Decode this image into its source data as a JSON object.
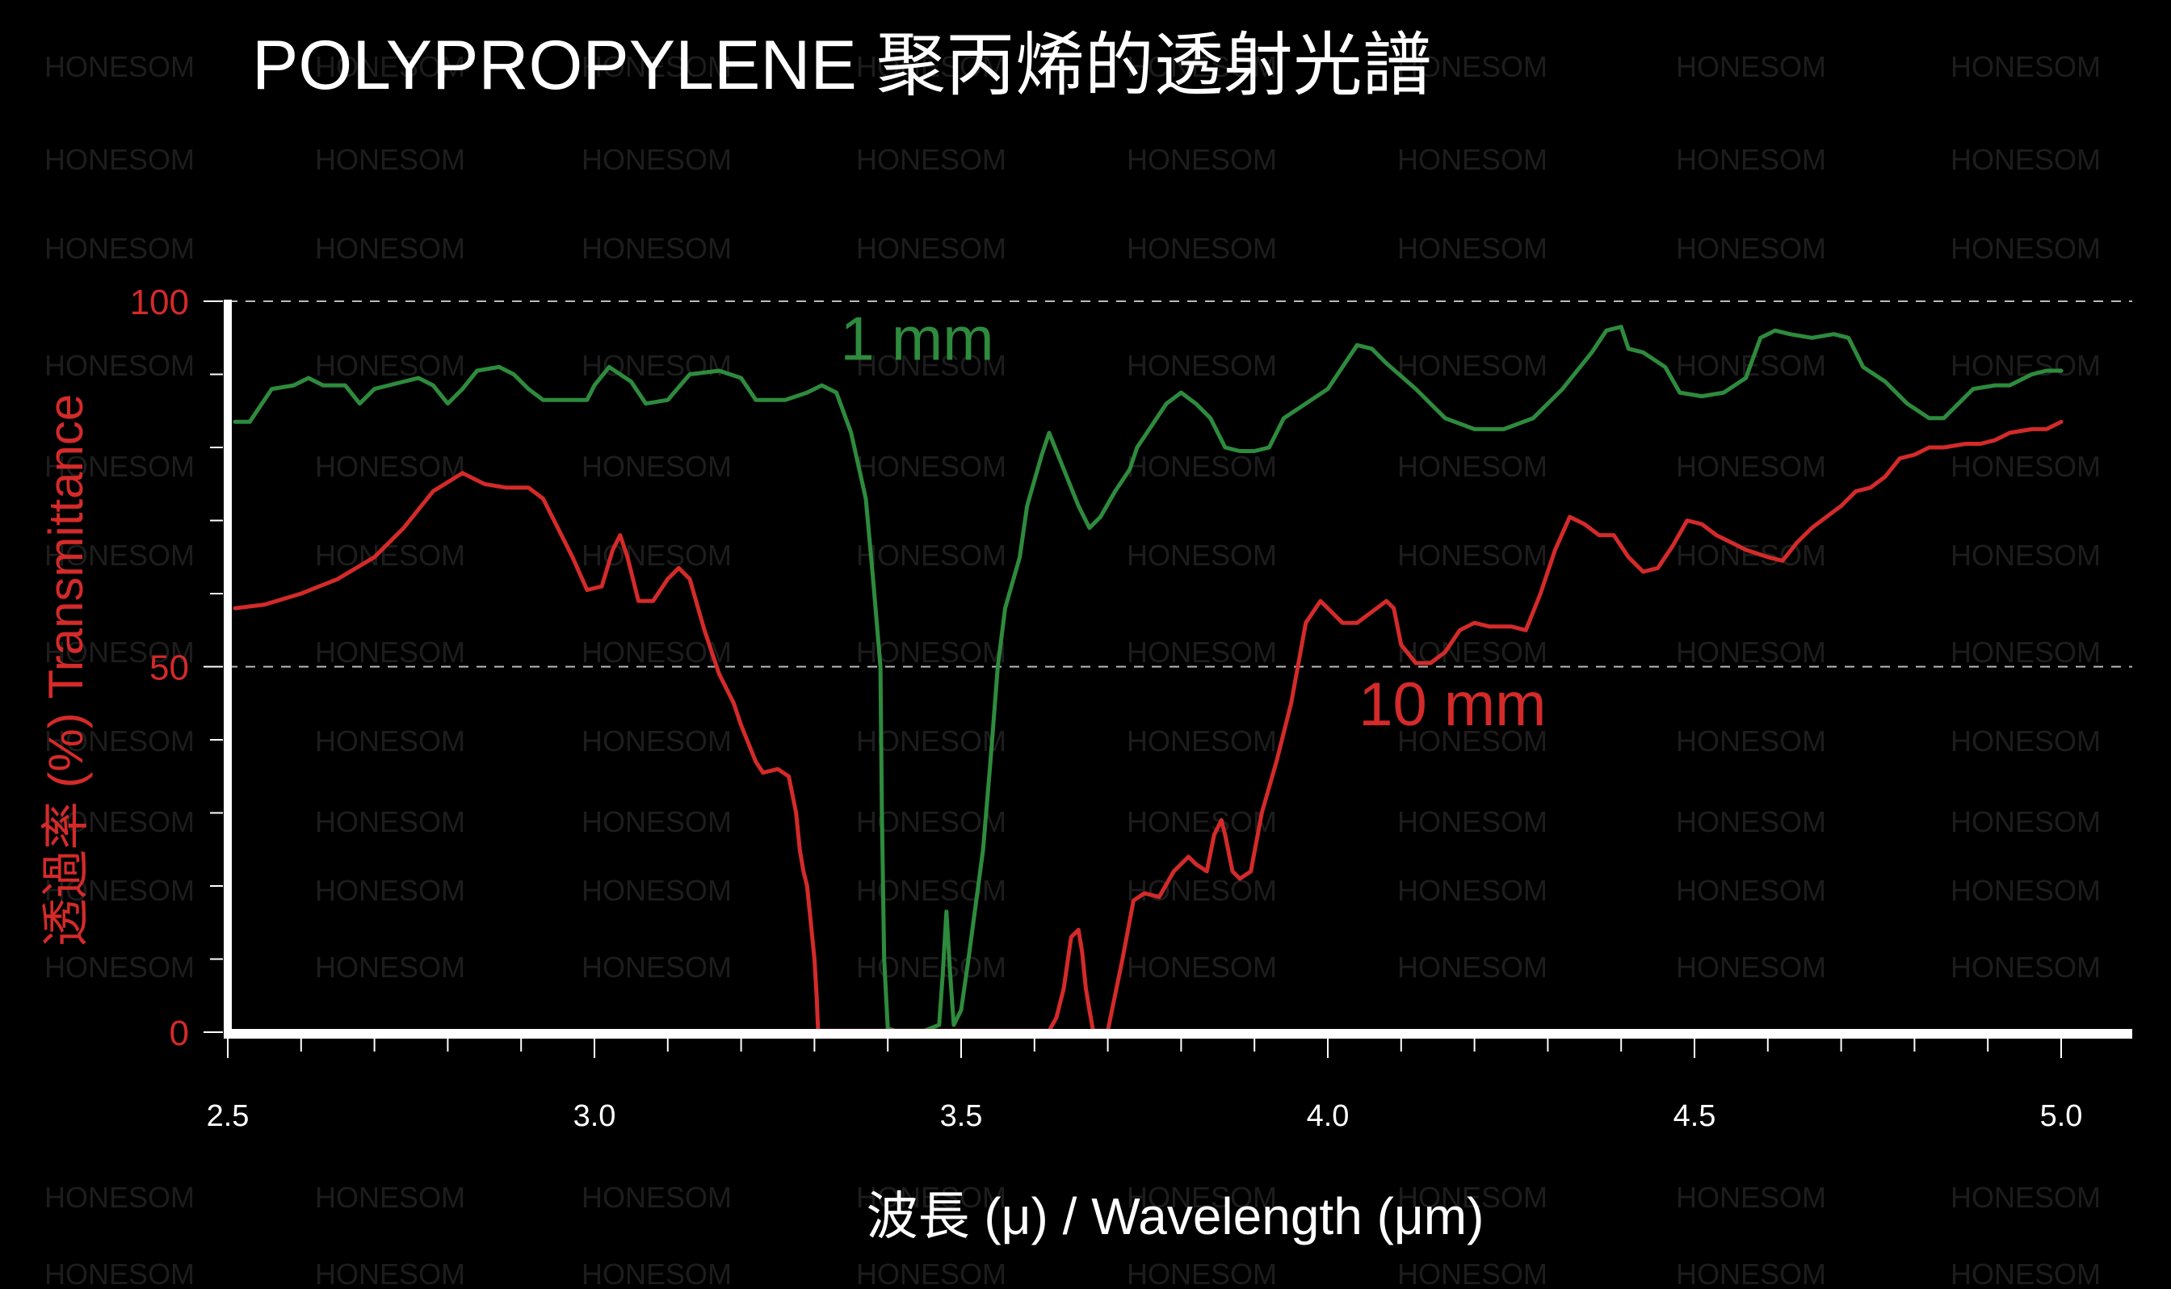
{
  "watermark": "HONESOM",
  "chart_data": {
    "type": "line",
    "title": "POLYPROPYLENE  聚丙烯的透射光譜",
    "xlabel": "波長 (μ) / Wavelength (μm)",
    "ylabel": "透過率 (%)  Transmittance",
    "xlim": [
      2.5,
      5.0
    ],
    "ylim": [
      0,
      100
    ],
    "x_ticks": [
      "2.5",
      "3.0",
      "3.5",
      "4.0",
      "4.5",
      "5.0"
    ],
    "x_tick_values": [
      2.5,
      3.0,
      3.5,
      4.0,
      4.5,
      5.0
    ],
    "y_ticks": [
      "0",
      "50",
      "100"
    ],
    "y_tick_values": [
      0,
      50,
      100
    ],
    "grid": "dashed horizontal lines at 50 and 100",
    "colors": {
      "axis": "#ffffff",
      "ylabel": "#d42a2a",
      "grid": "#bbbbbb"
    },
    "series": [
      {
        "name": "1 mm",
        "color": "#2e8b3d",
        "points": [
          [
            2.51,
            83.5
          ],
          [
            2.53,
            83.5
          ],
          [
            2.56,
            88
          ],
          [
            2.59,
            88.5
          ],
          [
            2.61,
            89.5
          ],
          [
            2.63,
            88.5
          ],
          [
            2.66,
            88.5
          ],
          [
            2.68,
            86
          ],
          [
            2.7,
            88
          ],
          [
            2.74,
            89
          ],
          [
            2.76,
            89.5
          ],
          [
            2.78,
            88.5
          ],
          [
            2.8,
            86
          ],
          [
            2.82,
            88
          ],
          [
            2.84,
            90.5
          ],
          [
            2.87,
            91
          ],
          [
            2.89,
            90
          ],
          [
            2.91,
            88
          ],
          [
            2.93,
            86.5
          ],
          [
            2.97,
            86.5
          ],
          [
            2.99,
            86.5
          ],
          [
            3.0,
            88.5
          ],
          [
            3.02,
            91
          ],
          [
            3.05,
            89
          ],
          [
            3.07,
            86
          ],
          [
            3.1,
            86.5
          ],
          [
            3.13,
            90
          ],
          [
            3.17,
            90.5
          ],
          [
            3.2,
            89.5
          ],
          [
            3.22,
            86.5
          ],
          [
            3.26,
            86.5
          ],
          [
            3.29,
            87.5
          ],
          [
            3.31,
            88.5
          ],
          [
            3.33,
            87.5
          ],
          [
            3.35,
            82
          ],
          [
            3.37,
            73
          ],
          [
            3.38,
            62
          ],
          [
            3.39,
            50
          ],
          [
            3.392,
            30
          ],
          [
            3.395,
            10
          ],
          [
            3.4,
            0.5
          ],
          [
            3.41,
            0.2
          ],
          [
            3.45,
            0.2
          ],
          [
            3.47,
            1
          ],
          [
            3.475,
            8
          ],
          [
            3.48,
            16.5
          ],
          [
            3.485,
            8
          ],
          [
            3.49,
            1
          ],
          [
            3.5,
            3
          ],
          [
            3.51,
            10
          ],
          [
            3.53,
            25
          ],
          [
            3.54,
            37
          ],
          [
            3.55,
            50
          ],
          [
            3.56,
            58
          ],
          [
            3.58,
            65
          ],
          [
            3.59,
            72
          ],
          [
            3.61,
            79
          ],
          [
            3.62,
            82
          ],
          [
            3.64,
            77
          ],
          [
            3.66,
            72
          ],
          [
            3.675,
            69
          ],
          [
            3.69,
            70.5
          ],
          [
            3.71,
            74
          ],
          [
            3.73,
            77
          ],
          [
            3.74,
            80
          ],
          [
            3.76,
            83
          ],
          [
            3.78,
            86
          ],
          [
            3.8,
            87.5
          ],
          [
            3.82,
            86
          ],
          [
            3.84,
            84
          ],
          [
            3.86,
            80
          ],
          [
            3.88,
            79.5
          ],
          [
            3.9,
            79.5
          ],
          [
            3.92,
            80
          ],
          [
            3.94,
            84
          ],
          [
            3.97,
            86
          ],
          [
            4.0,
            88
          ],
          [
            4.02,
            91
          ],
          [
            4.04,
            94
          ],
          [
            4.06,
            93.5
          ],
          [
            4.08,
            91.5
          ],
          [
            4.12,
            88
          ],
          [
            4.16,
            84
          ],
          [
            4.2,
            82.5
          ],
          [
            4.24,
            82.5
          ],
          [
            4.28,
            84
          ],
          [
            4.32,
            88
          ],
          [
            4.36,
            93
          ],
          [
            4.38,
            96
          ],
          [
            4.4,
            96.5
          ],
          [
            4.41,
            93.5
          ],
          [
            4.43,
            93
          ],
          [
            4.46,
            91
          ],
          [
            4.48,
            87.5
          ],
          [
            4.51,
            87
          ],
          [
            4.54,
            87.5
          ],
          [
            4.57,
            89.5
          ],
          [
            4.59,
            95
          ],
          [
            4.61,
            96
          ],
          [
            4.63,
            95.5
          ],
          [
            4.66,
            95
          ],
          [
            4.69,
            95.5
          ],
          [
            4.71,
            95
          ],
          [
            4.73,
            91
          ],
          [
            4.76,
            89
          ],
          [
            4.79,
            86
          ],
          [
            4.82,
            84
          ],
          [
            4.84,
            84
          ],
          [
            4.86,
            86
          ],
          [
            4.88,
            88
          ],
          [
            4.91,
            88.5
          ],
          [
            4.93,
            88.5
          ],
          [
            4.96,
            90
          ],
          [
            4.98,
            90.5
          ],
          [
            5.0,
            90.5
          ]
        ]
      },
      {
        "name": "10 mm",
        "color": "#d42a2a",
        "points": [
          [
            2.51,
            58
          ],
          [
            2.55,
            58.5
          ],
          [
            2.6,
            60
          ],
          [
            2.65,
            62
          ],
          [
            2.7,
            65
          ],
          [
            2.74,
            69
          ],
          [
            2.78,
            74
          ],
          [
            2.82,
            76.5
          ],
          [
            2.85,
            75
          ],
          [
            2.88,
            74.5
          ],
          [
            2.91,
            74.5
          ],
          [
            2.93,
            73
          ],
          [
            2.95,
            69
          ],
          [
            2.97,
            65
          ],
          [
            2.99,
            60.5
          ],
          [
            3.01,
            61
          ],
          [
            3.025,
            66
          ],
          [
            3.035,
            68
          ],
          [
            3.045,
            65
          ],
          [
            3.06,
            59
          ],
          [
            3.08,
            59
          ],
          [
            3.1,
            62
          ],
          [
            3.115,
            63.5
          ],
          [
            3.13,
            62
          ],
          [
            3.15,
            55
          ],
          [
            3.17,
            49
          ],
          [
            3.19,
            45
          ],
          [
            3.2,
            42
          ],
          [
            3.22,
            37
          ],
          [
            3.23,
            35.5
          ],
          [
            3.25,
            36
          ],
          [
            3.265,
            35
          ],
          [
            3.275,
            30
          ],
          [
            3.28,
            25
          ],
          [
            3.285,
            22
          ],
          [
            3.29,
            20
          ],
          [
            3.295,
            15
          ],
          [
            3.3,
            10
          ],
          [
            3.303,
            5
          ],
          [
            3.305,
            0.2
          ],
          [
            3.62,
            0.2
          ],
          [
            3.63,
            2
          ],
          [
            3.64,
            6
          ],
          [
            3.65,
            13
          ],
          [
            3.66,
            14
          ],
          [
            3.665,
            11
          ],
          [
            3.67,
            6
          ],
          [
            3.675,
            3
          ],
          [
            3.68,
            0.2
          ],
          [
            3.7,
            0.2
          ],
          [
            3.72,
            10
          ],
          [
            3.735,
            18
          ],
          [
            3.75,
            19
          ],
          [
            3.77,
            18.5
          ],
          [
            3.79,
            22
          ],
          [
            3.81,
            24
          ],
          [
            3.82,
            23
          ],
          [
            3.835,
            22
          ],
          [
            3.845,
            27
          ],
          [
            3.855,
            29
          ],
          [
            3.86,
            27
          ],
          [
            3.87,
            22
          ],
          [
            3.88,
            21
          ],
          [
            3.895,
            22
          ],
          [
            3.91,
            30
          ],
          [
            3.93,
            37
          ],
          [
            3.95,
            45
          ],
          [
            3.97,
            56
          ],
          [
            3.99,
            59
          ],
          [
            4.0,
            58
          ],
          [
            4.02,
            56
          ],
          [
            4.04,
            56
          ],
          [
            4.06,
            57.5
          ],
          [
            4.08,
            59
          ],
          [
            4.09,
            58
          ],
          [
            4.1,
            53
          ],
          [
            4.12,
            50.5
          ],
          [
            4.14,
            50.5
          ],
          [
            4.16,
            52
          ],
          [
            4.18,
            55
          ],
          [
            4.2,
            56
          ],
          [
            4.22,
            55.5
          ],
          [
            4.25,
            55.5
          ],
          [
            4.27,
            55
          ],
          [
            4.29,
            60
          ],
          [
            4.31,
            66
          ],
          [
            4.33,
            70.5
          ],
          [
            4.35,
            69.5
          ],
          [
            4.37,
            68
          ],
          [
            4.39,
            68
          ],
          [
            4.41,
            65
          ],
          [
            4.43,
            63
          ],
          [
            4.45,
            63.5
          ],
          [
            4.47,
            66.5
          ],
          [
            4.49,
            70
          ],
          [
            4.51,
            69.5
          ],
          [
            4.53,
            68
          ],
          [
            4.55,
            67
          ],
          [
            4.57,
            66
          ],
          [
            4.6,
            65
          ],
          [
            4.62,
            64.5
          ],
          [
            4.64,
            67
          ],
          [
            4.66,
            69
          ],
          [
            4.68,
            70.5
          ],
          [
            4.7,
            72
          ],
          [
            4.72,
            74
          ],
          [
            4.74,
            74.5
          ],
          [
            4.76,
            76
          ],
          [
            4.78,
            78.5
          ],
          [
            4.8,
            79
          ],
          [
            4.82,
            80
          ],
          [
            4.84,
            80
          ],
          [
            4.87,
            80.5
          ],
          [
            4.89,
            80.5
          ],
          [
            4.91,
            81
          ],
          [
            4.93,
            82
          ],
          [
            4.96,
            82.5
          ],
          [
            4.98,
            82.5
          ],
          [
            5.0,
            83.5
          ]
        ]
      }
    ],
    "annotations": [
      {
        "text": "1 mm",
        "x": 3.44,
        "y": 92,
        "color": "#2e8b3d"
      },
      {
        "text": "10 mm",
        "x": 4.17,
        "y": 42,
        "color": "#d42a2a"
      }
    ]
  }
}
